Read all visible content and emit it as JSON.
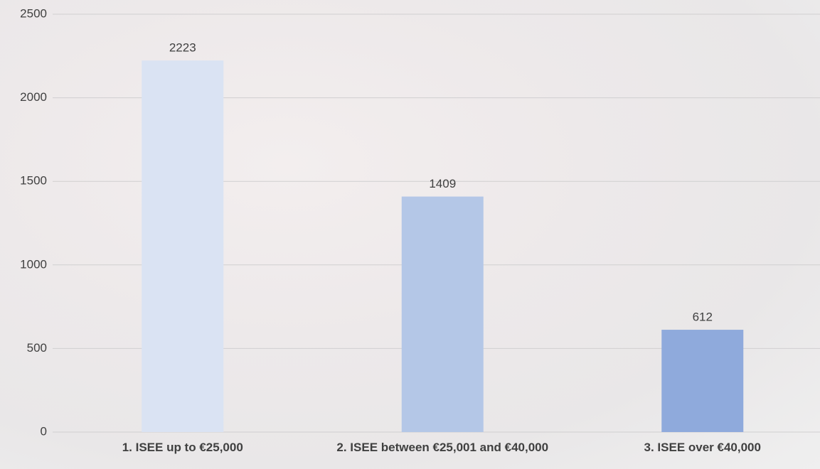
{
  "chart_data": {
    "type": "bar",
    "categories": [
      "1. ISEE up to €25,000",
      "2. ISEE between €25,001 and €40,000",
      "3. ISEE over €40,000"
    ],
    "values": [
      2223,
      1409,
      612
    ],
    "colors": [
      "#dae3f3",
      "#b4c7e7",
      "#8faadc"
    ],
    "ylim": [
      0,
      2500
    ],
    "yticks": [
      0,
      500,
      1000,
      1500,
      2000,
      2500
    ],
    "grid": true
  }
}
